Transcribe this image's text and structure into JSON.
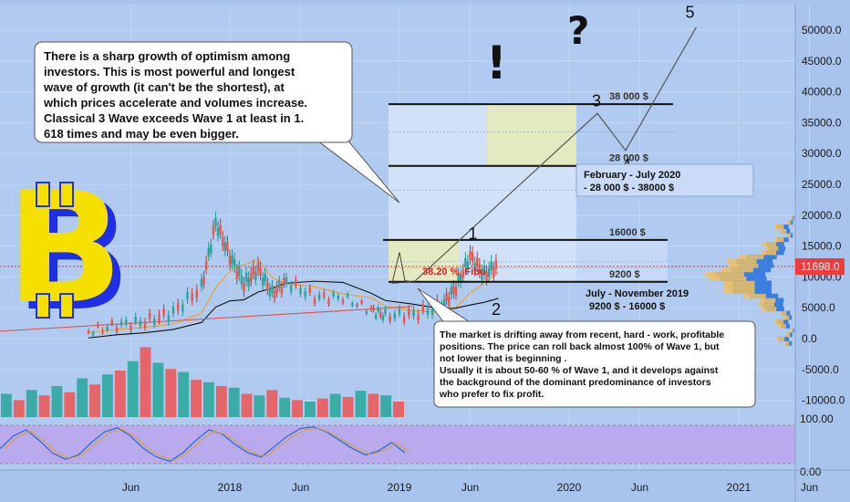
{
  "chart_data": {
    "type": "candlestick",
    "title": "",
    "x_ticks": [
      "Jun",
      "2018",
      "Jun",
      "2019",
      "Jun",
      "2020",
      "Jun",
      "2021",
      "Jun"
    ],
    "y_ticks": [
      "50000.0",
      "45000.0",
      "40000.0",
      "35000.0",
      "30000.0",
      "25000.0",
      "20000.0",
      "15000.0",
      "10000.0",
      "5000.0",
      "0.0",
      "-5000.0",
      "-10000.0"
    ],
    "ylim": [
      -11000,
      53500
    ],
    "osc_ticks": [
      "100.00",
      "0.00"
    ],
    "current_price": "11698.0",
    "price_path": [
      {
        "t": "2017-03",
        "v": 1000
      },
      {
        "t": "2017-05",
        "v": 2000
      },
      {
        "t": "2017-07",
        "v": 2500
      },
      {
        "t": "2017-09",
        "v": 4000
      },
      {
        "t": "2017-11",
        "v": 8000
      },
      {
        "t": "2017-12",
        "v": 18500
      },
      {
        "t": "2018-01",
        "v": 13000
      },
      {
        "t": "2018-02",
        "v": 8500
      },
      {
        "t": "2018-03",
        "v": 11000
      },
      {
        "t": "2018-04",
        "v": 7000
      },
      {
        "t": "2018-05",
        "v": 9000
      },
      {
        "t": "2018-07",
        "v": 6500
      },
      {
        "t": "2018-09",
        "v": 6500
      },
      {
        "t": "2018-11",
        "v": 4500
      },
      {
        "t": "2018-12",
        "v": 3500
      },
      {
        "t": "2019-02",
        "v": 3700
      },
      {
        "t": "2019-04",
        "v": 5000
      },
      {
        "t": "2019-05",
        "v": 8000
      },
      {
        "t": "2019-06",
        "v": 13000
      },
      {
        "t": "2019-07",
        "v": 10000
      },
      {
        "t": "2019-08",
        "v": 11700
      }
    ],
    "wave_path": [
      {
        "label": "",
        "t": "2019-08",
        "v": 9200
      },
      {
        "label": "3",
        "t": "2020-03",
        "v": 36500
      },
      {
        "label": "4",
        "t": "2020-05",
        "v": 30500
      },
      {
        "label": "5",
        "t": "2020-10",
        "v": 50500
      }
    ],
    "wave_labels": [
      {
        "label": "1",
        "t": "2019-06",
        "v": 15500
      },
      {
        "label": "2",
        "t": "2019-07",
        "v": 6800
      }
    ],
    "levels": [
      {
        "label": "38 000 $",
        "v": 38000
      },
      {
        "label": "28 000 $",
        "v": 28000
      },
      {
        "label": "16000 $",
        "v": 16000
      },
      {
        "label": "9200 $",
        "v": 9200
      }
    ],
    "fibo_label": "38.20 %. Fibo",
    "volume": [
      {
        "up": true,
        "h": 0.3
      },
      {
        "up": false,
        "h": 0.22
      },
      {
        "up": true,
        "h": 0.35
      },
      {
        "up": false,
        "h": 0.28
      },
      {
        "up": true,
        "h": 0.4
      },
      {
        "up": false,
        "h": 0.32
      },
      {
        "up": true,
        "h": 0.5
      },
      {
        "up": false,
        "h": 0.42
      },
      {
        "up": true,
        "h": 0.55
      },
      {
        "up": false,
        "h": 0.6
      },
      {
        "up": true,
        "h": 0.72
      },
      {
        "up": false,
        "h": 0.9
      },
      {
        "up": true,
        "h": 0.7
      },
      {
        "up": false,
        "h": 0.62
      },
      {
        "up": true,
        "h": 0.58
      },
      {
        "up": false,
        "h": 0.48
      },
      {
        "up": true,
        "h": 0.45
      },
      {
        "up": false,
        "h": 0.4
      },
      {
        "up": true,
        "h": 0.38
      },
      {
        "up": false,
        "h": 0.3
      },
      {
        "up": true,
        "h": 0.28
      },
      {
        "up": false,
        "h": 0.35
      },
      {
        "up": true,
        "h": 0.25
      },
      {
        "up": false,
        "h": 0.22
      },
      {
        "up": true,
        "h": 0.2
      },
      {
        "up": false,
        "h": 0.24
      },
      {
        "up": true,
        "h": 0.3
      },
      {
        "up": false,
        "h": 0.26
      },
      {
        "up": true,
        "h": 0.34
      },
      {
        "up": false,
        "h": 0.3
      },
      {
        "up": true,
        "h": 0.28
      },
      {
        "up": false,
        "h": 0.2
      }
    ],
    "oscillator": [
      40,
      70,
      85,
      60,
      30,
      15,
      25,
      55,
      80,
      90,
      70,
      40,
      20,
      10,
      30,
      60,
      85,
      75,
      50,
      30,
      20,
      45,
      70,
      88,
      92,
      80,
      60,
      40,
      25,
      35,
      55,
      30
    ]
  },
  "annotations": {
    "box_optimism": [
      "There is a sharp growth of optimism among",
      "investors.  This is most powerful and longest",
      "wave of growth (it can't be the shortest), at",
      "which prices accelerate and volumes increase.",
      "Classical 3 Wave exceeds Wave 1 at least in 1.",
      "618 times and may be even bigger."
    ],
    "box_drift": [
      "The market is drifting away from recent, hard - work, profitable",
      "positions. The price can roll back almost  100% of Wave 1, but",
      "not lower that is beginning .",
      "Usually it is about 50-60 % of Wave 1, and it develops against",
      "the background of the dominant predominance of investors",
      "who prefer to fix profit."
    ],
    "box_feb": [
      "February - July 2020",
      "- 28 000 $ - 38000 $"
    ],
    "box_jul": [
      "July - November  2019",
      "9200 $ - 16000 $"
    ],
    "question_mark": "?",
    "exclamation_mark": "!",
    "logo_letter": "B"
  },
  "colors": {
    "background": "#a9c4ec",
    "up": "#26a69a",
    "down": "#ef5350",
    "accent_red": "#e02020",
    "logo_yellow": "#f5e000",
    "logo_blue": "#1e2fe6"
  }
}
